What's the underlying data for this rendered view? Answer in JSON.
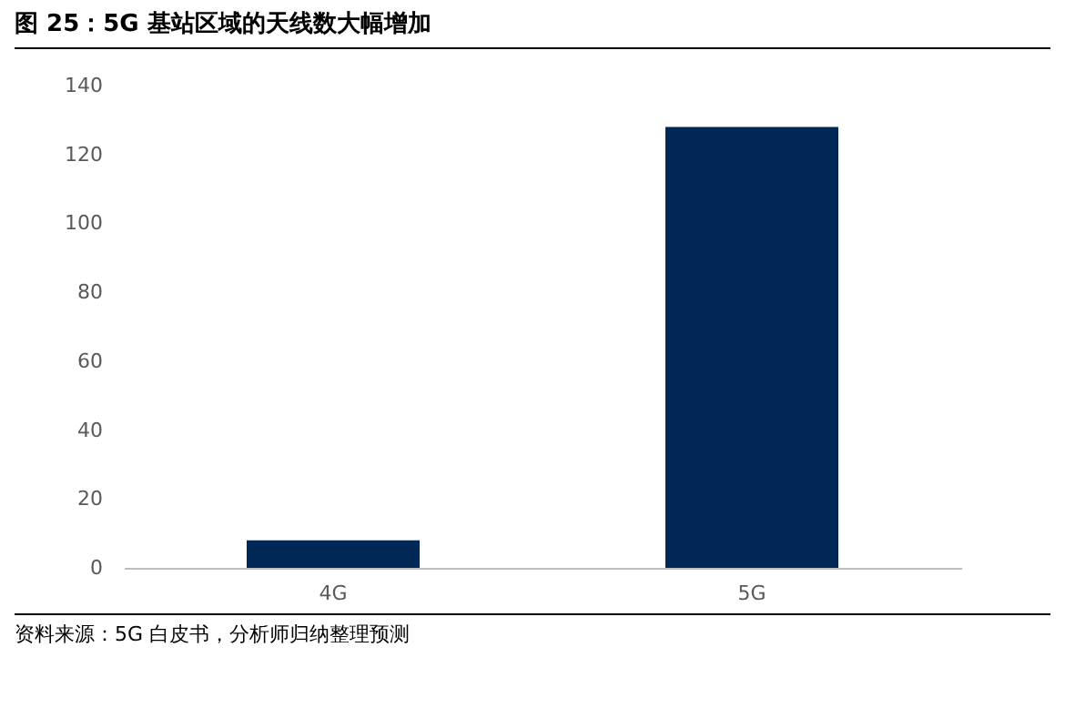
{
  "chart_data": {
    "type": "bar",
    "title": "图 25：5G 基站区域的天线数大幅增加",
    "categories": [
      "4G",
      "5G"
    ],
    "values": [
      8,
      128
    ],
    "color": "#002856",
    "ylim": [
      0,
      140
    ],
    "yticks": [
      0,
      20,
      40,
      60,
      80,
      100,
      120,
      140
    ],
    "grid": false,
    "annotations": [
      "资料来源：5G 白皮书，分析师归纳整理预测"
    ]
  }
}
